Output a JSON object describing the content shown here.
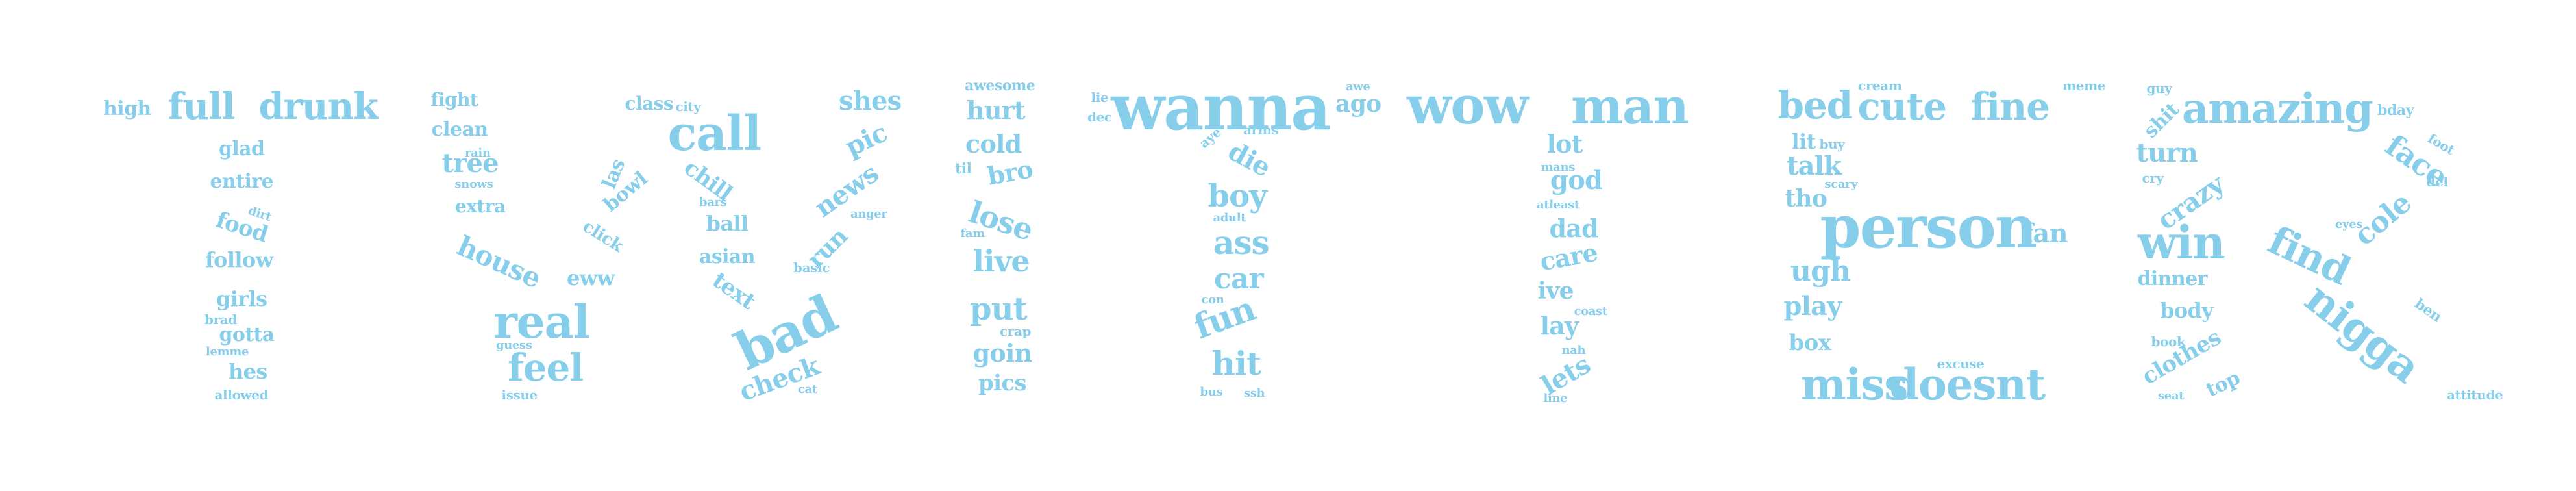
{
  "colors": {
    "word": "#87ceeb",
    "background": "#ffffff"
  },
  "words": [
    "high",
    "full",
    "drunk",
    "glad",
    "entire",
    "dirt",
    "food",
    "follow",
    "girls",
    "brad",
    "gotta",
    "lemme",
    "hes",
    "allowed",
    "fight",
    "clean",
    "rain",
    "tree",
    "snows",
    "extra",
    "class",
    "city",
    "call",
    "las",
    "bowl",
    "chill",
    "bars",
    "ball",
    "click",
    "house",
    "real",
    "eww",
    "asian",
    "basic",
    "text",
    "bad",
    "feel",
    "guess",
    "issue",
    "check",
    "cat",
    "shes",
    "pic",
    "news",
    "anger",
    "run",
    "awesome",
    "hurt",
    "cold",
    "til",
    "bro",
    "lose",
    "fam",
    "live",
    "put",
    "crap",
    "goin",
    "pics",
    "lie",
    "dec",
    "wanna",
    "awe",
    "ago",
    "aye",
    "arms",
    "die",
    "boy",
    "adult",
    "ass",
    "car",
    "con",
    "fun",
    "hit",
    "bus",
    "ssh",
    "wow",
    "man",
    "lot",
    "mans",
    "god",
    "atleast",
    "dad",
    "care",
    "ive",
    "coast",
    "lay",
    "nah",
    "lets",
    "line",
    "bed",
    "cute",
    "cream",
    "fine",
    "meme",
    "lit",
    "buy",
    "talk",
    "scary",
    "tho",
    "person",
    "fan",
    "ugh",
    "play",
    "box",
    "excuse",
    "miss",
    "doesnt",
    "guy",
    "amazing",
    "bday",
    "shit",
    "turn",
    "face",
    "cry",
    "crazy",
    "foot",
    "del",
    "win",
    "find",
    "cole",
    "eyes",
    "dinner",
    "body",
    "book",
    "nigga",
    "ben",
    "clothes",
    "top",
    "seat",
    "attitude"
  ]
}
